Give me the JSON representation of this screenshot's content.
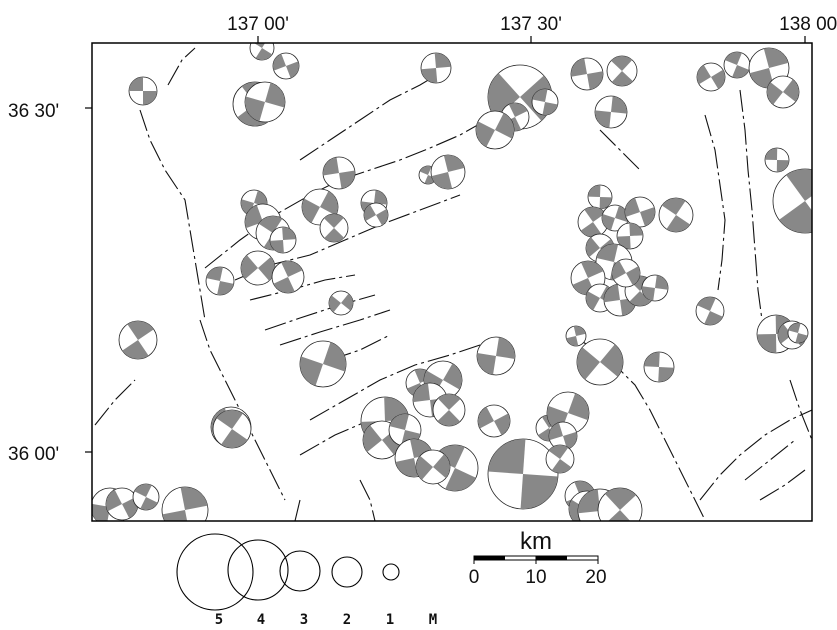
{
  "map": {
    "longitude_labels": [
      "137 00'",
      "137 30'",
      "138 00'"
    ],
    "latitude_labels": [
      "36 30'",
      "36 00'"
    ],
    "frame_color": "#000000",
    "fill_color": "#888888"
  },
  "scale_bar": {
    "unit": "km",
    "tick_labels": [
      "0",
      "10",
      "20"
    ]
  },
  "magnitude_legend": {
    "labels": [
      "5",
      "4",
      "3",
      "2",
      "1",
      "M"
    ]
  }
}
